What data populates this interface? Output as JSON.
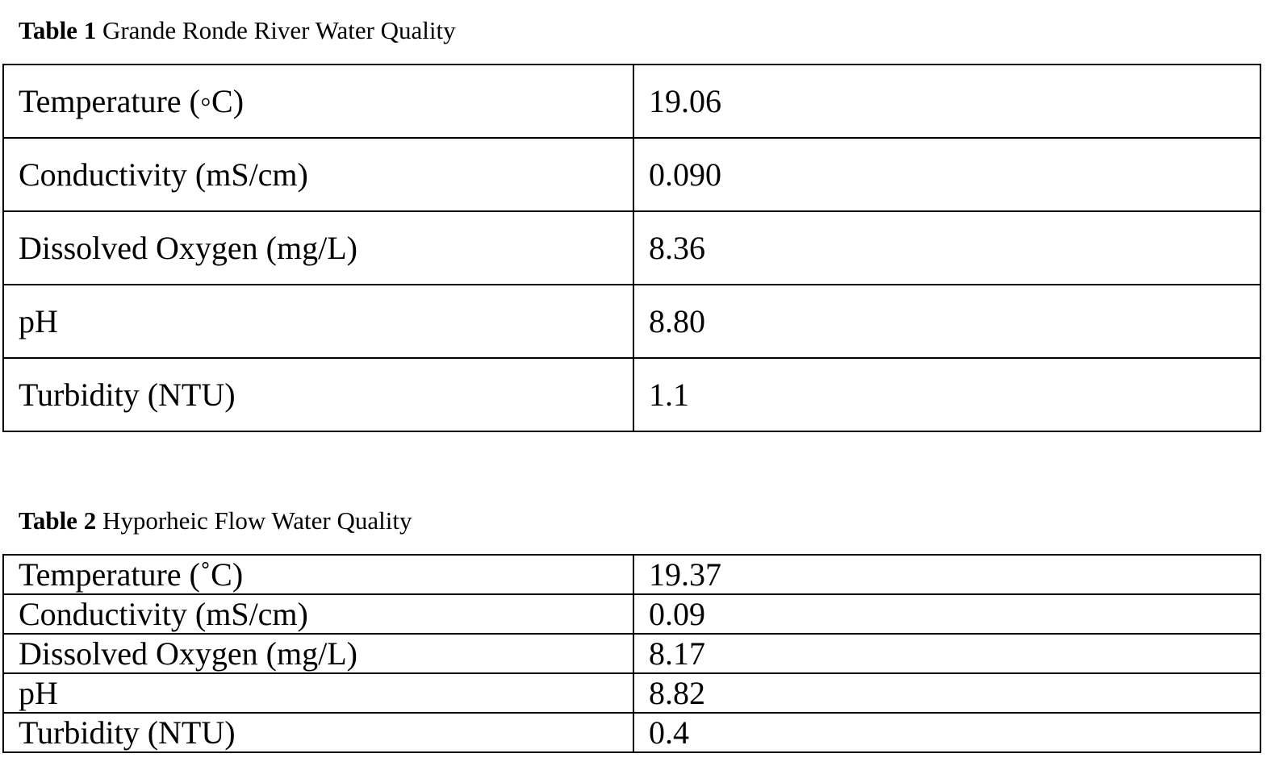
{
  "tables": [
    {
      "label": "Table 1",
      "title": "Grande Ronde River Water Quality",
      "rows": [
        [
          "Temperature (◦C)",
          "19.06"
        ],
        [
          "Conductivity (mS/cm)",
          "0.090"
        ],
        [
          "Dissolved Oxygen (mg/L)",
          "8.36"
        ],
        [
          "pH",
          "8.80"
        ],
        [
          "Turbidity (NTU)",
          "1.1"
        ]
      ]
    },
    {
      "label": "Table 2",
      "title": "Hyporheic Flow Water Quality",
      "rows": [
        [
          "Temperature (˚C)",
          "19.37"
        ],
        [
          "Conductivity (mS/cm)",
          "0.09"
        ],
        [
          "Dissolved Oxygen (mg/L)",
          "8.17"
        ],
        [
          "pH",
          "8.82"
        ],
        [
          "Turbidity (NTU)",
          "0.4"
        ]
      ]
    }
  ]
}
